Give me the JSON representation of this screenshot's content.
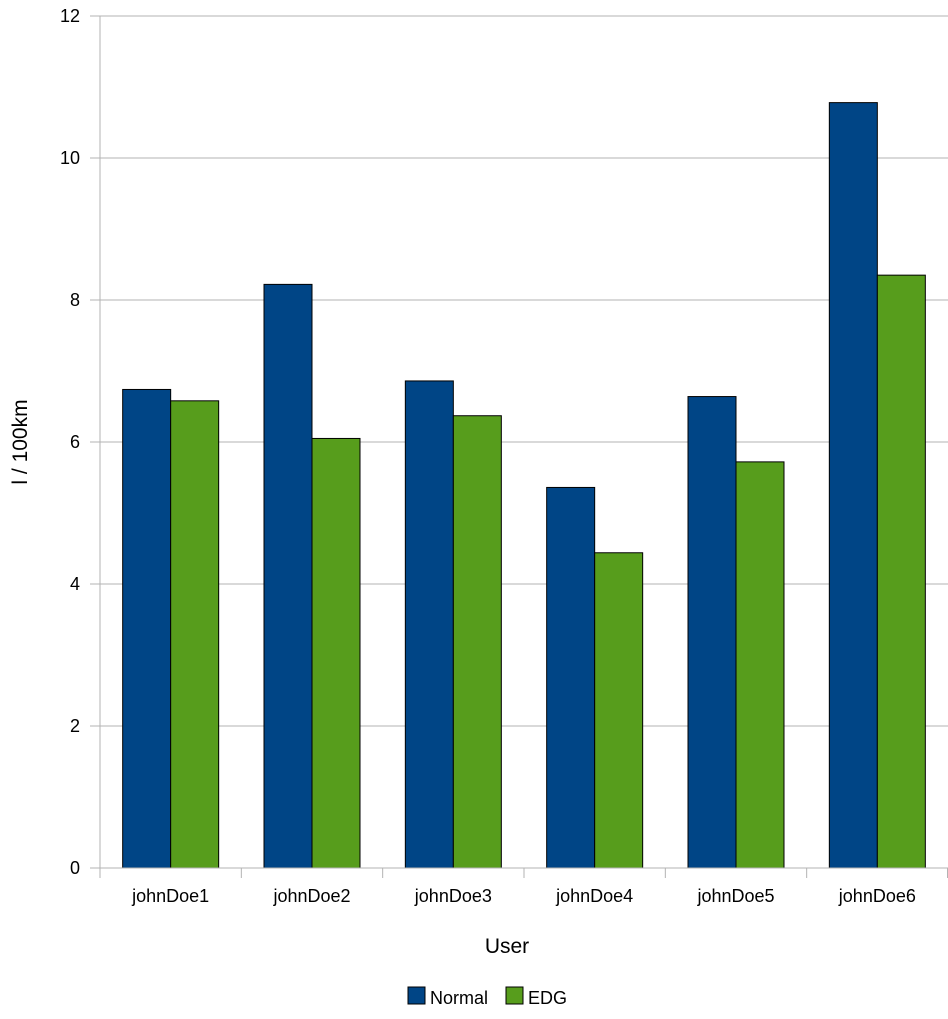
{
  "chart_data": {
    "type": "bar",
    "title": "",
    "xlabel": "User",
    "ylabel": "l / 100km",
    "categories": [
      "johnDoe1",
      "johnDoe2",
      "johnDoe3",
      "johnDoe4",
      "johnDoe5",
      "johnDoe6"
    ],
    "series": [
      {
        "name": "Normal",
        "color": "#004586",
        "values": [
          6.74,
          8.22,
          6.86,
          5.36,
          6.64,
          10.78
        ]
      },
      {
        "name": "EDG",
        "color": "#579d1c",
        "values": [
          6.58,
          6.05,
          6.37,
          4.44,
          5.72,
          8.35
        ]
      }
    ],
    "ylim": [
      0,
      12
    ],
    "yticks": [
      0,
      2,
      4,
      6,
      8,
      10,
      12
    ],
    "grid": true,
    "legend_position": "bottom"
  }
}
